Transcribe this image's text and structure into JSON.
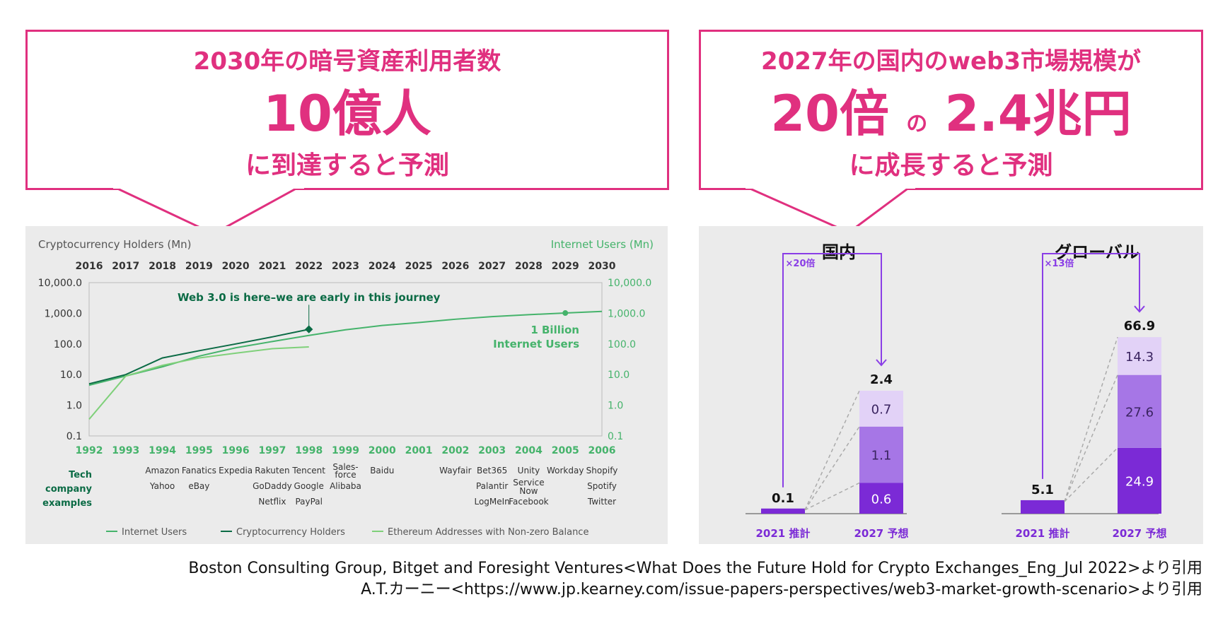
{
  "left_callout": {
    "line1": "2030年の暗号資産利用者数",
    "line2": "10億人",
    "line3": "に到達すると予測"
  },
  "right_callout": {
    "line1": "2027年の国内のweb3市場規模が",
    "line2a": "20倍",
    "line2b": "の",
    "line2c": "2.4兆円",
    "line3": "に成長すると予測"
  },
  "colors": {
    "accent": "#e0307f",
    "internet": "#45b36b",
    "crypto": "#0b6b45",
    "ethereum": "#7fd07a",
    "purple_dark": "#7b2ad6",
    "purple_mid": "#a676e6",
    "purple_light": "#e2d2f7"
  },
  "chart_data": [
    {
      "type": "line",
      "left_axis_title": "Cryptocurrency Holders (Mn)",
      "right_axis_title": "Internet Users (Mn)",
      "top_years": [
        "2016",
        "2017",
        "2018",
        "2019",
        "2020",
        "2021",
        "2022",
        "2023",
        "2024",
        "2025",
        "2026",
        "2027",
        "2028",
        "2029",
        "2030"
      ],
      "bottom_years": [
        "1992",
        "1993",
        "1994",
        "1995",
        "1996",
        "1997",
        "1998",
        "1999",
        "2000",
        "2001",
        "2002",
        "2003",
        "2004",
        "2005",
        "2006"
      ],
      "y_ticks": [
        "10,000.0",
        "1,000.0",
        "100.0",
        "10.0",
        "1.0",
        "0.1"
      ],
      "y_scale": "log",
      "ylim": [
        0.1,
        10000
      ],
      "annotation_web3": "Web 3.0 is here–we are early in this journey",
      "annotation_billion": [
        "1 Billion",
        "Internet Users"
      ],
      "series": [
        {
          "name": "Internet Users",
          "x_index": [
            0,
            1,
            2,
            3,
            4,
            5,
            6,
            7,
            8,
            9,
            10,
            11,
            12,
            13,
            14
          ],
          "values": [
            4.5,
            9,
            18,
            40,
            75,
            120,
            190,
            290,
            400,
            500,
            640,
            780,
            900,
            1020,
            1150
          ]
        },
        {
          "name": "Cryptocurrency Holders",
          "x_index": [
            0,
            1,
            2,
            3,
            4,
            5,
            6
          ],
          "values": [
            5,
            10,
            35,
            60,
            100,
            170,
            300
          ]
        },
        {
          "name": "Ethereum Addresses with Non-zero Balance",
          "x_index": [
            0,
            1,
            2,
            3,
            4,
            5,
            6
          ],
          "values": [
            0.35,
            9,
            20,
            35,
            50,
            70,
            80
          ]
        }
      ],
      "tech_label": [
        "Tech",
        "company",
        "examples"
      ],
      "tech_companies": [
        {
          "year_index": 2,
          "names": [
            "Amazon",
            "Yahoo"
          ]
        },
        {
          "year_index": 3,
          "names": [
            "Fanatics",
            "eBay"
          ]
        },
        {
          "year_index": 4,
          "names": [
            "Expedia"
          ]
        },
        {
          "year_index": 5,
          "names": [
            "Rakuten",
            "GoDaddy",
            "Netflix"
          ]
        },
        {
          "year_index": 6,
          "names": [
            "Tencent",
            "Google",
            "PayPal"
          ]
        },
        {
          "year_index": 7,
          "names": [
            "Sales-",
            "force",
            "Alibaba"
          ]
        },
        {
          "year_index": 8,
          "names": [
            "Baidu"
          ]
        },
        {
          "year_index": 10,
          "names": [
            "Wayfair"
          ]
        },
        {
          "year_index": 11,
          "names": [
            "Bet365",
            "Palantir",
            "LogMeIn"
          ]
        },
        {
          "year_index": 12,
          "names": [
            "Unity",
            "Service",
            "Now",
            "Facebook"
          ]
        },
        {
          "year_index": 13,
          "names": [
            "Workday"
          ]
        },
        {
          "year_index": 14,
          "names": [
            "Shopify",
            "Spotify",
            "Twitter"
          ]
        }
      ],
      "legend": [
        "Internet Users",
        "Cryptocurrency Holders",
        "Ethereum Addresses with Non-zero Balance"
      ]
    },
    {
      "type": "bar",
      "stacked": true,
      "unit": "兆円",
      "groups": [
        {
          "title": "国内",
          "multiplier": "×20倍",
          "categories": [
            "2021 推計",
            "2027 予想"
          ],
          "totals": [
            "0.1",
            "2.4"
          ],
          "stack_2027": [
            {
              "value": 0.6,
              "label": "0.6"
            },
            {
              "value": 1.1,
              "label": "1.1"
            },
            {
              "value": 0.7,
              "label": "0.7"
            }
          ],
          "value_2021": 0.1
        },
        {
          "title": "グローバル",
          "multiplier": "×13倍",
          "categories": [
            "2021 推計",
            "2027 予想"
          ],
          "totals": [
            "5.1",
            "66.9"
          ],
          "stack_2027": [
            {
              "value": 24.9,
              "label": "24.9"
            },
            {
              "value": 27.6,
              "label": "27.6"
            },
            {
              "value": 14.3,
              "label": "14.3"
            }
          ],
          "value_2021": 5.1
        }
      ]
    }
  ],
  "sources": {
    "line1": "Boston Consulting Group, Bitget and Foresight Ventures<What Does the Future Hold for Crypto Exchanges_Eng_Jul 2022>より引用",
    "line2": "A.T.カーニー<https://www.jp.kearney.com/issue-papers-perspectives/web3-market-growth-scenario>より引用"
  }
}
